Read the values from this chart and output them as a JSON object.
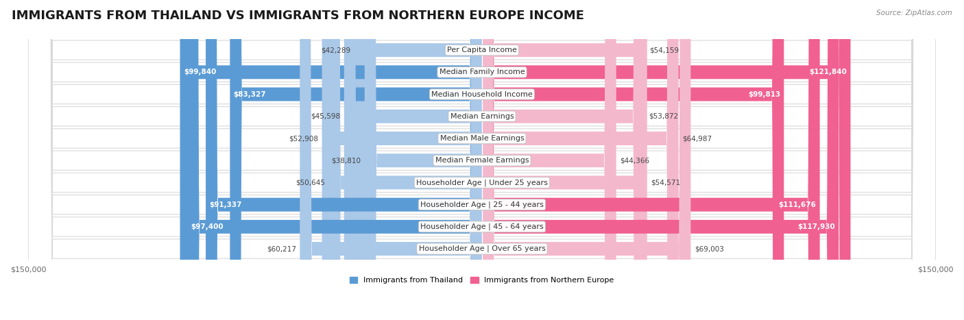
{
  "title": "IMMIGRANTS FROM THAILAND VS IMMIGRANTS FROM NORTHERN EUROPE INCOME",
  "source": "Source: ZipAtlas.com",
  "categories": [
    "Per Capita Income",
    "Median Family Income",
    "Median Household Income",
    "Median Earnings",
    "Median Male Earnings",
    "Median Female Earnings",
    "Householder Age | Under 25 years",
    "Householder Age | 25 - 44 years",
    "Householder Age | 45 - 64 years",
    "Householder Age | Over 65 years"
  ],
  "thailand_values": [
    42289,
    99840,
    83327,
    45598,
    52908,
    38810,
    50645,
    91337,
    97400,
    60217
  ],
  "northern_europe_values": [
    54159,
    121840,
    99813,
    53872,
    64987,
    44366,
    54571,
    111676,
    117930,
    69003
  ],
  "thailand_labels": [
    "$42,289",
    "$99,840",
    "$83,327",
    "$45,598",
    "$52,908",
    "$38,810",
    "$50,645",
    "$91,337",
    "$97,400",
    "$60,217"
  ],
  "northern_europe_labels": [
    "$54,159",
    "$121,840",
    "$99,813",
    "$53,872",
    "$64,987",
    "$44,366",
    "$54,571",
    "$111,676",
    "$117,930",
    "$69,003"
  ],
  "thailand_color_light": "#aac8e8",
  "thailand_color_dark": "#5b9bd5",
  "northern_europe_color_light": "#f4b8cc",
  "northern_europe_color_dark": "#f06090",
  "row_bg_color": "#f0f0f0",
  "row_border_color": "#d8d8d8",
  "max_value": 150000,
  "legend_thailand": "Immigrants from Thailand",
  "legend_northern_europe": "Immigrants from Northern Europe",
  "title_fontsize": 13,
  "cat_label_fontsize": 8,
  "value_fontsize": 7.5,
  "axis_label_fontsize": 8,
  "background_color": "#ffffff",
  "white_text_thresh": 70000
}
